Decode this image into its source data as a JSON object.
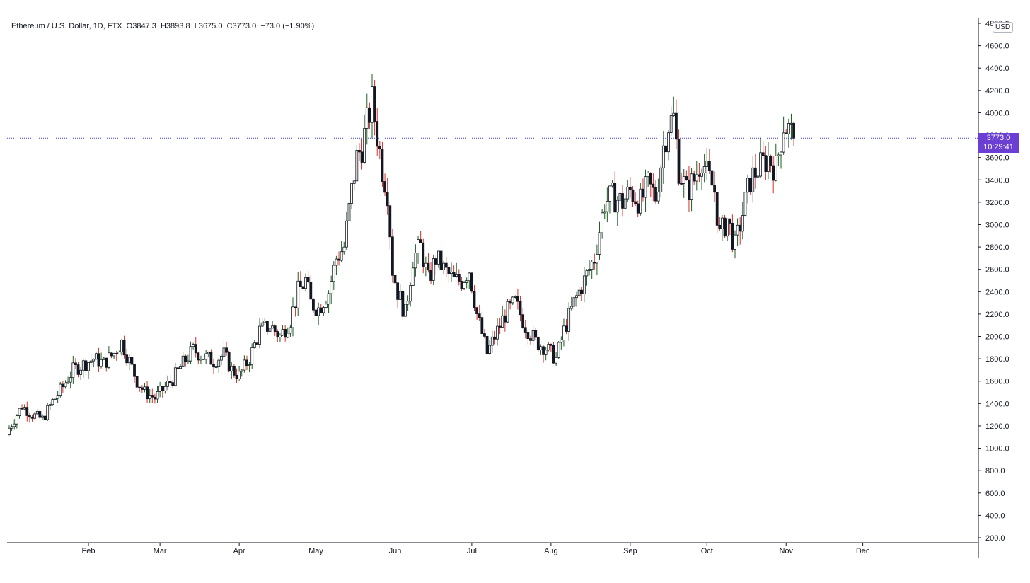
{
  "legend": {
    "symbol": "Ethereum / U.S. Dollar",
    "interval": "1D",
    "exchange": "FTX",
    "open": "O3847.3",
    "high": "H3893.8",
    "low": "L3675.0",
    "close": "C3773.0",
    "change": "−73.0 (−1.90%)"
  },
  "currency": "USD",
  "last_price": {
    "price": "3773.0",
    "countdown": "10:29:41"
  },
  "colors": {
    "up": "#1b5e20",
    "down": "#d32f2f",
    "body_down": "#131722",
    "body_up": "#ffffff",
    "last_line": "#3f3fd9",
    "label_bg": "#6b3fd3"
  },
  "chart_data": {
    "type": "candlestick",
    "title": "Ethereum / U.S. Dollar, 1D, FTX",
    "ylim": [
      200,
      4800
    ],
    "y_ticks": [
      "4800.0",
      "4600.0",
      "4400.0",
      "4200.0",
      "4000.0",
      "3800.0",
      "3600.0",
      "3400.0",
      "3200.0",
      "3000.0",
      "2800.0",
      "2600.0",
      "2400.0",
      "2200.0",
      "2000.0",
      "1800.0",
      "1600.0",
      "1400.0",
      "1200.0",
      "1000.0",
      "800.0",
      "600.0",
      "400.0",
      "200.0"
    ],
    "x_ticks": [
      "Feb",
      "Mar",
      "Apr",
      "May",
      "Jun",
      "Jul",
      "Aug",
      "Sep",
      "Oct",
      "Nov",
      "Dec"
    ],
    "x_tick_days": [
      31,
      59,
      90,
      120,
      151,
      181,
      212,
      243,
      273,
      304,
      334
    ],
    "x_range_days": [
      0,
      364
    ],
    "last_close": 3773.0,
    "close_series": [
      [
        0,
        1180
      ],
      [
        5,
        1380
      ],
      [
        9,
        1300
      ],
      [
        13,
        1260
      ],
      [
        17,
        1420
      ],
      [
        21,
        1550
      ],
      [
        25,
        1700
      ],
      [
        29,
        1750
      ],
      [
        33,
        1800
      ],
      [
        37,
        1760
      ],
      [
        41,
        1850
      ],
      [
        44,
        1950
      ],
      [
        47,
        1780
      ],
      [
        50,
        1600
      ],
      [
        53,
        1500
      ],
      [
        57,
        1450
      ],
      [
        60,
        1520
      ],
      [
        64,
        1620
      ],
      [
        68,
        1760
      ],
      [
        72,
        1880
      ],
      [
        76,
        1820
      ],
      [
        80,
        1780
      ],
      [
        84,
        1840
      ],
      [
        87,
        1700
      ],
      [
        90,
        1650
      ],
      [
        94,
        1800
      ],
      [
        98,
        2050
      ],
      [
        102,
        2100
      ],
      [
        106,
        2000
      ],
      [
        110,
        2150
      ],
      [
        113,
        2400
      ],
      [
        116,
        2500
      ],
      [
        118,
        2300
      ],
      [
        121,
        2250
      ],
      [
        125,
        2400
      ],
      [
        128,
        2700
      ],
      [
        131,
        2800
      ],
      [
        134,
        3300
      ],
      [
        136,
        3600
      ],
      [
        138,
        3700
      ],
      [
        140,
        3900
      ],
      [
        142,
        4100
      ],
      [
        144,
        3800
      ],
      [
        146,
        3500
      ],
      [
        148,
        3300
      ],
      [
        150,
        2600
      ],
      [
        152,
        2400
      ],
      [
        155,
        2200
      ],
      [
        158,
        2700
      ],
      [
        161,
        2800
      ],
      [
        164,
        2500
      ],
      [
        167,
        2700
      ],
      [
        170,
        2600
      ],
      [
        174,
        2500
      ],
      [
        177,
        2500
      ],
      [
        180,
        2600
      ],
      [
        183,
        2200
      ],
      [
        187,
        1850
      ],
      [
        190,
        2000
      ],
      [
        194,
        2200
      ],
      [
        198,
        2300
      ],
      [
        202,
        2100
      ],
      [
        206,
        1950
      ],
      [
        210,
        1900
      ],
      [
        214,
        1800
      ],
      [
        217,
        2050
      ],
      [
        221,
        2300
      ],
      [
        225,
        2500
      ],
      [
        229,
        2700
      ],
      [
        233,
        3200
      ],
      [
        236,
        3250
      ],
      [
        240,
        3200
      ],
      [
        243,
        3300
      ],
      [
        247,
        3200
      ],
      [
        250,
        3350
      ],
      [
        253,
        3250
      ],
      [
        256,
        3700
      ],
      [
        258,
        3900
      ],
      [
        260,
        3950
      ],
      [
        262,
        3500
      ],
      [
        265,
        3300
      ],
      [
        268,
        3400
      ],
      [
        271,
        3600
      ],
      [
        273,
        3450
      ],
      [
        276,
        3300
      ],
      [
        278,
        2900
      ],
      [
        281,
        3050
      ],
      [
        284,
        2800
      ],
      [
        287,
        3100
      ],
      [
        290,
        3400
      ],
      [
        293,
        3500
      ],
      [
        297,
        3600
      ],
      [
        300,
        3500
      ],
      [
        303,
        3900
      ],
      [
        305,
        3850
      ],
      [
        307,
        3773
      ]
    ]
  }
}
